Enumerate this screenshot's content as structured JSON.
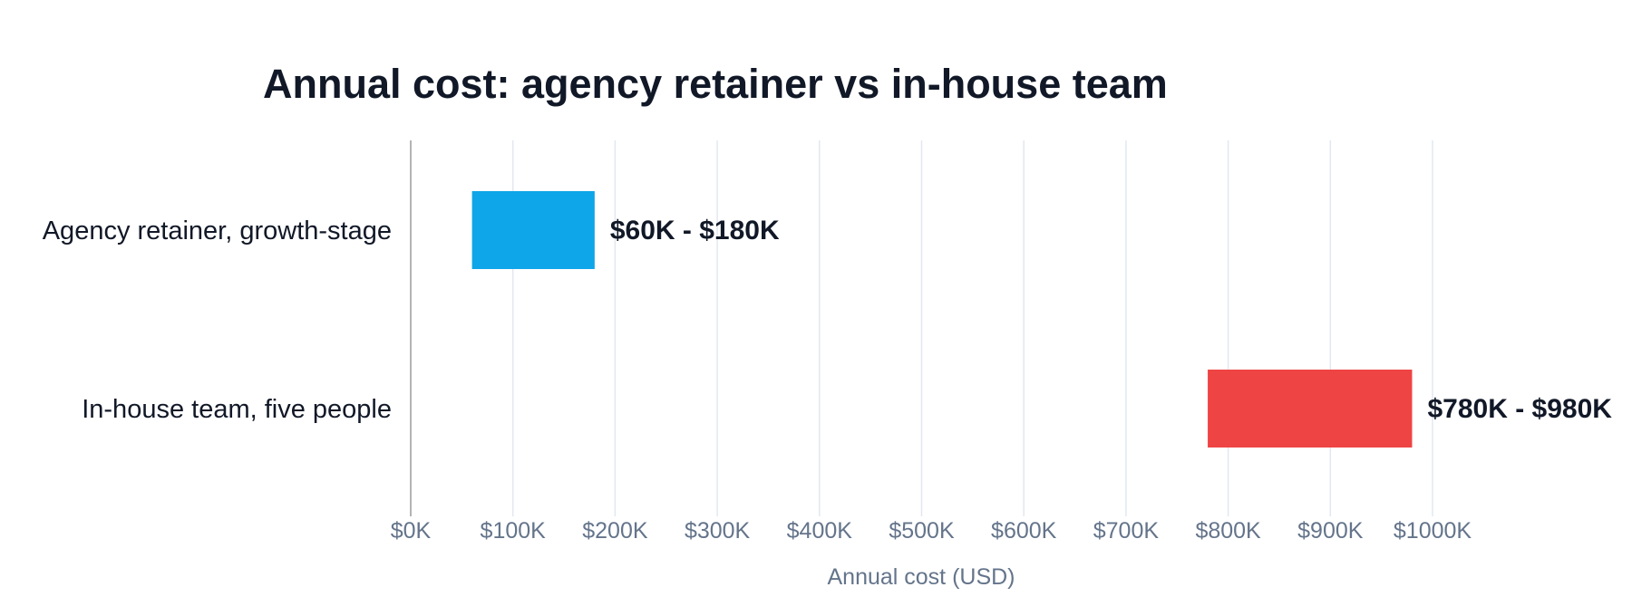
{
  "chart_data": {
    "type": "bar",
    "orientation": "horizontal",
    "title": "Annual cost: agency retainer vs in-house team",
    "xlabel": "Annual cost (USD)",
    "ylabel": "",
    "xlim": [
      0,
      1000
    ],
    "x_unit": "thousands USD",
    "x_ticks": [
      0,
      100,
      200,
      300,
      400,
      500,
      600,
      700,
      800,
      900,
      1000
    ],
    "x_tick_labels": [
      "$0K",
      "$100K",
      "$200K",
      "$300K",
      "$400K",
      "$500K",
      "$600K",
      "$700K",
      "$800K",
      "$900K",
      "$1000K"
    ],
    "grid": true,
    "legend": "none",
    "bars": [
      {
        "category": "Agency retainer, growth-stage",
        "low": 60,
        "high": 180,
        "label": "$60K - $180K",
        "color": "#0ea5e9"
      },
      {
        "category": "In-house team, five people",
        "low": 780,
        "high": 980,
        "label": "$780K - $980K",
        "color": "#ef4444"
      }
    ]
  }
}
